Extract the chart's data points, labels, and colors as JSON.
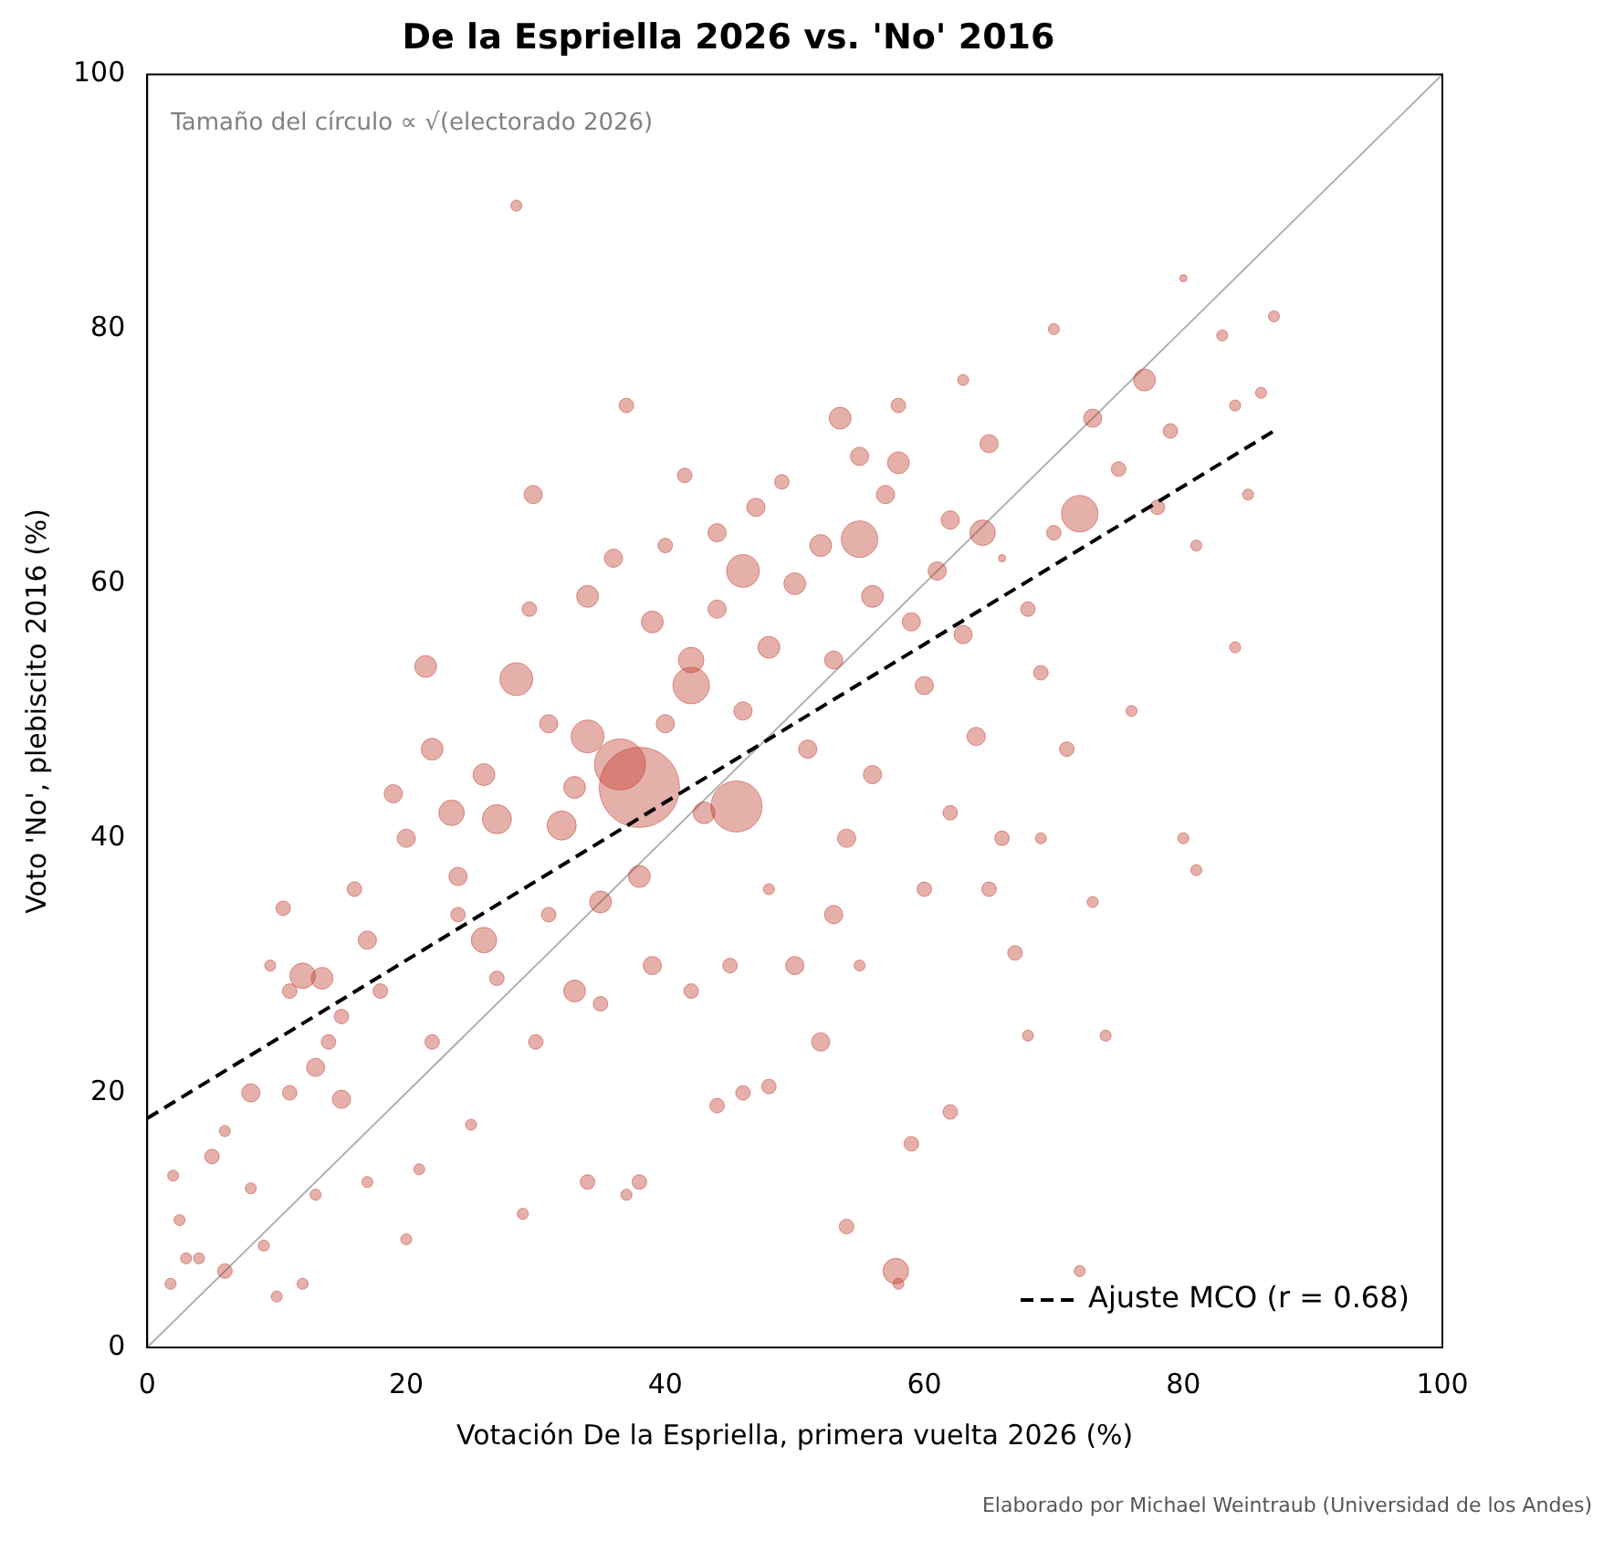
{
  "chart_data": {
    "type": "bubble",
    "title": "De la Espriella 2026 vs. 'No' 2016",
    "xlabel": "Votación De la Espriella, primera vuelta 2026 (%)",
    "ylabel": "Voto 'No', plebiscito 2016 (%)",
    "xlim": [
      0,
      100
    ],
    "ylim": [
      0,
      100
    ],
    "xticks": [
      0,
      20,
      40,
      60,
      80,
      100
    ],
    "yticks": [
      0,
      20,
      40,
      60,
      80,
      100
    ],
    "grid": false,
    "legend": "bottom right",
    "annotations": [
      "Tamaño del círculo ∝ √(electorado 2026)",
      "Elaborado por Michael Weintraub (Universidad de los Andes)"
    ],
    "series": [
      {
        "type": "line",
        "color": "#b0b0b0",
        "marker": "none",
        "line_style": "solid",
        "x": [
          0,
          100
        ],
        "values": [
          0,
          100
        ]
      },
      {
        "color": "#c0392b",
        "marker": "circle",
        "x": [
          28.5,
          38,
          45.5,
          36.5,
          72,
          28.5,
          57.8,
          12,
          32,
          27,
          42,
          55,
          46,
          21.5,
          77,
          64.5,
          58,
          53.5,
          13.5,
          15,
          23.5,
          34,
          42,
          29.8,
          37,
          41.5,
          53,
          62,
          68,
          79,
          83,
          87,
          80,
          84,
          81,
          80,
          74,
          72,
          68,
          62,
          59,
          54,
          48,
          46,
          44,
          38,
          34,
          29,
          37,
          2,
          1.8,
          2.5,
          3,
          5,
          6,
          8,
          9,
          10,
          11,
          10.5,
          9.5,
          12,
          13,
          14,
          16,
          17,
          18,
          19,
          20,
          21,
          22,
          24,
          25,
          27,
          29.5,
          30,
          31,
          33,
          35,
          34,
          36,
          39,
          40,
          43,
          44,
          47,
          48,
          50,
          51,
          52,
          53,
          54,
          56,
          56,
          57,
          60,
          61,
          63,
          64,
          65,
          66,
          67,
          69,
          70,
          71,
          73,
          75,
          76,
          78,
          81,
          84,
          85,
          86,
          70,
          63,
          58,
          55,
          49,
          44,
          40,
          31,
          26,
          24,
          22,
          20,
          17,
          15,
          13,
          11,
          8,
          6,
          4,
          48,
          50,
          45,
          42,
          52,
          55,
          60,
          62,
          65,
          69,
          73,
          58,
          66,
          59,
          46,
          38,
          33,
          26,
          35,
          39
        ],
        "values": [
          89.7,
          44,
          42.5,
          45.8,
          65.5,
          52.5,
          6,
          29.2,
          41,
          41.5,
          52,
          63.5,
          61,
          53.5,
          76,
          64,
          69.5,
          73,
          29,
          19.5,
          42,
          48,
          54,
          67,
          74,
          68.5,
          54,
          65,
          58,
          72,
          79.5,
          81,
          84,
          55,
          37.5,
          40,
          24.5,
          6,
          24.5,
          18.5,
          16,
          9.5,
          20.5,
          20,
          19,
          13,
          13,
          10.5,
          12,
          13.5,
          5,
          10,
          7,
          15,
          17,
          12.5,
          8,
          4,
          20,
          34.5,
          30,
          5,
          12,
          24,
          36,
          13,
          28,
          43.5,
          8.5,
          14,
          24,
          34,
          17.5,
          29,
          58,
          24,
          34,
          28,
          35,
          59,
          62,
          57,
          49,
          42,
          58,
          66,
          55,
          60,
          47,
          63,
          34,
          40,
          59,
          45,
          67,
          52,
          61,
          56,
          48,
          71,
          40,
          31,
          53,
          64,
          47,
          73,
          69,
          50,
          66,
          63,
          74,
          67,
          75,
          80,
          76,
          74,
          70,
          68,
          64,
          63,
          49,
          45,
          37,
          47,
          40,
          32,
          26,
          22,
          28,
          20,
          6,
          7,
          36,
          30,
          30,
          28,
          24,
          30,
          36,
          42,
          36,
          40,
          35,
          5,
          62,
          57,
          50,
          37,
          44,
          32,
          27,
          30
        ],
        "sizes": [
          0.019,
          1,
          0.405,
          0.405,
          0.207,
          0.167,
          0.101,
          0.101,
          0.132,
          0.132,
          0.207,
          0.207,
          0.167,
          0.074,
          0.074,
          0.101,
          0.074,
          0.074,
          0.074,
          0.052,
          0.101,
          0.167,
          0.101,
          0.052,
          0.033,
          0.033,
          0.052,
          0.052,
          0.033,
          0.033,
          0.019,
          0.019,
          0.008,
          0.019,
          0.019,
          0.019,
          0.019,
          0.019,
          0.019,
          0.033,
          0.033,
          0.033,
          0.033,
          0.033,
          0.033,
          0.033,
          0.033,
          0.019,
          0.019,
          0.019,
          0.019,
          0.019,
          0.019,
          0.033,
          0.019,
          0.019,
          0.019,
          0.019,
          0.033,
          0.033,
          0.019,
          0.019,
          0.019,
          0.033,
          0.033,
          0.019,
          0.033,
          0.052,
          0.019,
          0.019,
          0.033,
          0.033,
          0.019,
          0.033,
          0.033,
          0.033,
          0.033,
          0.074,
          0.074,
          0.074,
          0.052,
          0.074,
          0.052,
          0.074,
          0.052,
          0.052,
          0.074,
          0.074,
          0.052,
          0.074,
          0.052,
          0.052,
          0.074,
          0.052,
          0.052,
          0.052,
          0.052,
          0.052,
          0.052,
          0.052,
          0.033,
          0.033,
          0.033,
          0.033,
          0.033,
          0.052,
          0.033,
          0.019,
          0.033,
          0.019,
          0.019,
          0.019,
          0.019,
          0.019,
          0.019,
          0.033,
          0.052,
          0.033,
          0.052,
          0.033,
          0.052,
          0.074,
          0.052,
          0.074,
          0.052,
          0.052,
          0.033,
          0.052,
          0.033,
          0.052,
          0.033,
          0.019,
          0.019,
          0.052,
          0.033,
          0.033,
          0.052,
          0.019,
          0.033,
          0.033,
          0.033,
          0.019,
          0.019,
          0.019,
          0.008,
          0.052,
          0.052,
          0.074,
          0.074,
          0.101,
          0.033,
          0.052
        ]
      },
      {
        "type": "line",
        "name": "Ajuste MCO (r = 0.68)",
        "color": "#000000",
        "marker": "none",
        "line_style": "dashed",
        "x": [
          0,
          87
        ],
        "values": [
          18,
          72
        ]
      }
    ]
  }
}
